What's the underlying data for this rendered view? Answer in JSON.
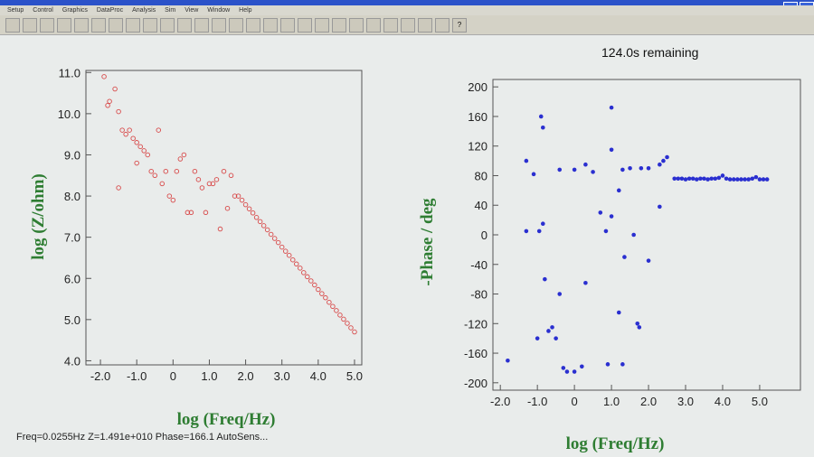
{
  "menu": [
    "Setup",
    "Control",
    "Graphics",
    "DataProc",
    "Analysis",
    "Sim",
    "View",
    "Window",
    "Help"
  ],
  "toolbar_help": "?",
  "remaining": "124.0s remaining",
  "status": "Freq=0.0255Hz  Z=1.491e+010  Phase=166.1  AutoSens...",
  "colors": {
    "impedance": "#d84a4a",
    "phase": "#2a2fd0",
    "axis_label": "#2e7d32"
  },
  "chart_data": [
    {
      "type": "scatter",
      "ylabel": "log (Z/ohm)",
      "xlabel": "log (Freq/Hz)",
      "xlim": [
        -2.4,
        5.2
      ],
      "ylim": [
        3.9,
        11.05
      ],
      "xticks": [
        "-2.0",
        "-1.0",
        "0",
        "1.0",
        "2.0",
        "3.0",
        "4.0",
        "5.0"
      ],
      "xtick_values": [
        -2,
        -1,
        0,
        1,
        2,
        3,
        4,
        5
      ],
      "yticks": [
        "4.0",
        "5.0",
        "6.0",
        "7.0",
        "8.0",
        "9.0",
        "10.0",
        "11.0"
      ],
      "ytick_values": [
        4,
        5,
        6,
        7,
        8,
        9,
        10,
        11
      ],
      "marker": "open-circle",
      "grid": false,
      "points": [
        [
          -1.9,
          10.9
        ],
        [
          -1.8,
          10.2
        ],
        [
          -1.75,
          10.3
        ],
        [
          -1.6,
          10.6
        ],
        [
          -1.5,
          10.05
        ],
        [
          -1.4,
          9.6
        ],
        [
          -1.3,
          9.5
        ],
        [
          -1.2,
          9.6
        ],
        [
          -1.5,
          8.2
        ],
        [
          -1.1,
          9.4
        ],
        [
          -1.0,
          9.3
        ],
        [
          -1.0,
          8.8
        ],
        [
          -0.9,
          9.2
        ],
        [
          -0.8,
          9.1
        ],
        [
          -0.7,
          9.0
        ],
        [
          -0.6,
          8.6
        ],
        [
          -0.5,
          8.5
        ],
        [
          -0.4,
          9.6
        ],
        [
          -0.3,
          8.3
        ],
        [
          -0.2,
          8.6
        ],
        [
          -0.1,
          8.0
        ],
        [
          0,
          7.9
        ],
        [
          0.1,
          8.6
        ],
        [
          0.2,
          8.9
        ],
        [
          0.3,
          9.0
        ],
        [
          0.4,
          7.6
        ],
        [
          0.5,
          7.6
        ],
        [
          0.6,
          8.6
        ],
        [
          0.7,
          8.4
        ],
        [
          0.8,
          8.2
        ],
        [
          0.9,
          7.6
        ],
        [
          1.0,
          8.3
        ],
        [
          1.1,
          8.3
        ],
        [
          1.2,
          8.4
        ],
        [
          1.3,
          7.2
        ],
        [
          1.4,
          8.6
        ],
        [
          1.5,
          7.7
        ],
        [
          1.6,
          8.5
        ],
        [
          1.7,
          8.0
        ],
        [
          1.8,
          8.0
        ],
        [
          1.9,
          7.9
        ],
        [
          2.0,
          7.79
        ],
        [
          2.1,
          7.69
        ],
        [
          2.2,
          7.59
        ],
        [
          2.3,
          7.48
        ],
        [
          2.4,
          7.38
        ],
        [
          2.5,
          7.28
        ],
        [
          2.6,
          7.18
        ],
        [
          2.7,
          7.07
        ],
        [
          2.8,
          6.97
        ],
        [
          2.9,
          6.87
        ],
        [
          3.0,
          6.76
        ],
        [
          3.1,
          6.66
        ],
        [
          3.2,
          6.56
        ],
        [
          3.3,
          6.45
        ],
        [
          3.4,
          6.35
        ],
        [
          3.5,
          6.25
        ],
        [
          3.6,
          6.14
        ],
        [
          3.7,
          6.04
        ],
        [
          3.8,
          5.94
        ],
        [
          3.9,
          5.84
        ],
        [
          4.0,
          5.73
        ],
        [
          4.1,
          5.63
        ],
        [
          4.2,
          5.53
        ],
        [
          4.3,
          5.42
        ],
        [
          4.4,
          5.32
        ],
        [
          4.5,
          5.22
        ],
        [
          4.6,
          5.11
        ],
        [
          4.7,
          5.01
        ],
        [
          4.8,
          4.91
        ],
        [
          4.9,
          4.8
        ],
        [
          5.0,
          4.7
        ]
      ]
    },
    {
      "type": "scatter",
      "ylabel": "-Phase / deg",
      "xlabel": "log (Freq/Hz)",
      "xlim": [
        -2.2,
        6.1
      ],
      "ylim": [
        -210,
        210
      ],
      "xticks": [
        "-2.0",
        "-1.0",
        "0",
        "1.0",
        "2.0",
        "3.0",
        "4.0",
        "5.0"
      ],
      "xtick_values": [
        -2,
        -1,
        0,
        1,
        2,
        3,
        4,
        5
      ],
      "yticks": [
        "-200",
        "-160",
        "-120",
        "-80",
        "-40",
        "0",
        "40",
        "80",
        "120",
        "160",
        "200"
      ],
      "ytick_values": [
        -200,
        -160,
        -120,
        -80,
        -40,
        0,
        40,
        80,
        120,
        160,
        200
      ],
      "marker": "filled-circle",
      "grid": false,
      "points": [
        [
          -1.8,
          -170
        ],
        [
          -1.3,
          100
        ],
        [
          -1.3,
          5
        ],
        [
          -1.1,
          82
        ],
        [
          -1.0,
          -140
        ],
        [
          -0.95,
          5
        ],
        [
          -0.9,
          160
        ],
        [
          -0.85,
          145
        ],
        [
          -0.85,
          15
        ],
        [
          -0.8,
          -60
        ],
        [
          -0.7,
          -130
        ],
        [
          -0.6,
          -125
        ],
        [
          -0.5,
          -140
        ],
        [
          -0.4,
          -80
        ],
        [
          -0.4,
          88
        ],
        [
          -0.3,
          -180
        ],
        [
          -0.2,
          -185
        ],
        [
          0,
          -185
        ],
        [
          0,
          88
        ],
        [
          0.2,
          -178
        ],
        [
          0.3,
          -65
        ],
        [
          0.3,
          95
        ],
        [
          0.5,
          85
        ],
        [
          0.7,
          30
        ],
        [
          0.85,
          5
        ],
        [
          0.9,
          -175
        ],
        [
          1.0,
          172
        ],
        [
          1.0,
          115
        ],
        [
          1.0,
          25
        ],
        [
          1.2,
          -105
        ],
        [
          1.2,
          60
        ],
        [
          1.3,
          88
        ],
        [
          1.3,
          -175
        ],
        [
          1.35,
          -30
        ],
        [
          1.5,
          90
        ],
        [
          1.6,
          0
        ],
        [
          1.7,
          -120
        ],
        [
          1.75,
          -125
        ],
        [
          1.8,
          90
        ],
        [
          2.0,
          -35
        ],
        [
          2.0,
          90
        ],
        [
          2.3,
          38
        ],
        [
          2.3,
          95
        ],
        [
          2.4,
          100
        ],
        [
          2.5,
          105
        ],
        [
          2.7,
          76
        ],
        [
          2.8,
          76
        ],
        [
          2.9,
          76
        ],
        [
          3.0,
          75
        ],
        [
          3.1,
          76
        ],
        [
          3.2,
          76
        ],
        [
          3.3,
          75
        ],
        [
          3.4,
          76
        ],
        [
          3.5,
          76
        ],
        [
          3.6,
          75
        ],
        [
          3.7,
          76
        ],
        [
          3.8,
          76
        ],
        [
          3.9,
          77
        ],
        [
          4.0,
          80
        ],
        [
          4.1,
          76
        ],
        [
          4.2,
          75
        ],
        [
          4.3,
          75
        ],
        [
          4.4,
          75
        ],
        [
          4.5,
          75
        ],
        [
          4.6,
          75
        ],
        [
          4.7,
          75
        ],
        [
          4.8,
          76
        ],
        [
          4.9,
          78
        ],
        [
          5.0,
          75
        ],
        [
          5.1,
          75
        ],
        [
          5.2,
          75
        ]
      ]
    }
  ]
}
